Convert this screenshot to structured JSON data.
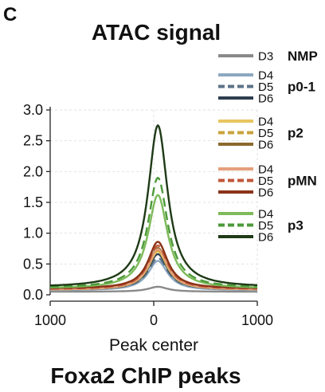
{
  "panel_label": "C",
  "chart_data": {
    "type": "line",
    "title": "ATAC signal",
    "xlabel": "Peak center",
    "ylabel": "",
    "subtitle": "Foxa2 ChIP peaks",
    "xlim": [
      -1000,
      1000
    ],
    "ylim": [
      0,
      3.0
    ],
    "x_ticks": [
      -1000,
      0,
      1000
    ],
    "x_tick_labels": [
      "1000",
      "0",
      "1000"
    ],
    "y_ticks": [
      0.0,
      0.5,
      1.0,
      1.5,
      2.0,
      2.5,
      3.0
    ],
    "y_tick_labels": [
      "0.0",
      "0.5",
      "1.0",
      "1.5",
      "2.0",
      "2.5",
      "3.0"
    ],
    "grid": true,
    "legend_placement": "right",
    "legend_groups": [
      {
        "name": "NMP",
        "days": [
          "D3"
        ]
      },
      {
        "name": "p0-1",
        "days": [
          "D4",
          "D5",
          "D6"
        ]
      },
      {
        "name": "p2",
        "days": [
          "D4",
          "D5",
          "D6"
        ]
      },
      {
        "name": "pMN",
        "days": [
          "D4",
          "D5",
          "D6"
        ]
      },
      {
        "name": "p3",
        "days": [
          "D4",
          "D5",
          "D6"
        ]
      }
    ],
    "series": [
      {
        "group": "NMP",
        "day": "D3",
        "color": "#8a8a8a",
        "dash": "solid",
        "peak": 0.13,
        "base": 0.05
      },
      {
        "group": "p0-1",
        "day": "D4",
        "color": "#8ca8c0",
        "dash": "solid",
        "peak": 0.55,
        "base": 0.07
      },
      {
        "group": "p0-1",
        "day": "D5",
        "color": "#5c7388",
        "dash": "dashed",
        "peak": 0.6,
        "base": 0.08
      },
      {
        "group": "p0-1",
        "day": "D6",
        "color": "#2e3e50",
        "dash": "solid",
        "peak": 0.66,
        "base": 0.08
      },
      {
        "group": "p2",
        "day": "D4",
        "color": "#e8c660",
        "dash": "solid",
        "peak": 0.7,
        "base": 0.08
      },
      {
        "group": "p2",
        "day": "D5",
        "color": "#c9a33c",
        "dash": "dashed",
        "peak": 0.72,
        "base": 0.08
      },
      {
        "group": "p2",
        "day": "D6",
        "color": "#8b6a2e",
        "dash": "solid",
        "peak": 0.76,
        "base": 0.09
      },
      {
        "group": "pMN",
        "day": "D4",
        "color": "#e5a07c",
        "dash": "solid",
        "peak": 0.74,
        "base": 0.08
      },
      {
        "group": "pMN",
        "day": "D5",
        "color": "#c0583a",
        "dash": "dashed",
        "peak": 0.8,
        "base": 0.09
      },
      {
        "group": "pMN",
        "day": "D6",
        "color": "#8a3318",
        "dash": "solid",
        "peak": 0.86,
        "base": 0.1
      },
      {
        "group": "p3",
        "day": "D4",
        "color": "#7dbb5a",
        "dash": "solid",
        "peak": 1.62,
        "base": 0.1
      },
      {
        "group": "p3",
        "day": "D5",
        "color": "#4d9a3a",
        "dash": "dashed",
        "peak": 1.9,
        "base": 0.11
      },
      {
        "group": "p3",
        "day": "D6",
        "color": "#1e3a16",
        "dash": "solid",
        "peak": 2.75,
        "base": 0.12
      }
    ]
  }
}
